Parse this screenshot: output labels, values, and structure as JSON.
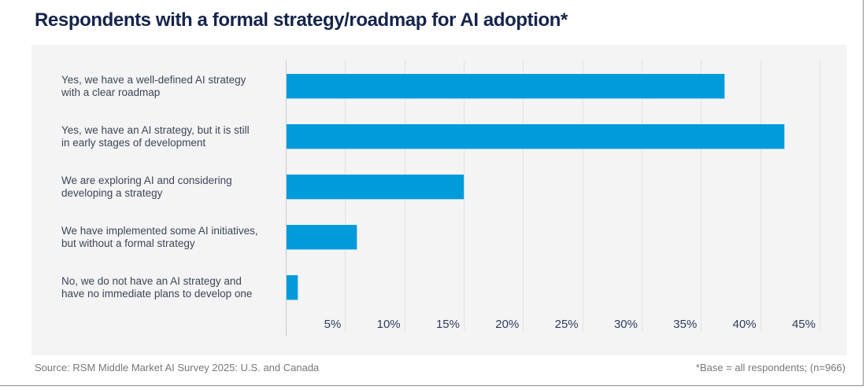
{
  "title": "Respondents with a formal strategy/roadmap for AI adoption*",
  "footer": {
    "source": "Source: RSM Middle Market AI Survey 2025: U.S. and Canada",
    "base_note": "*Base = all respondents; (n=966)"
  },
  "colors": {
    "bar": "#009bdb",
    "bar_edge": "#a8d6ef",
    "panel_bg": "#f4f4f5",
    "gridline": "#e1e2e4",
    "axis": "#c9cacc",
    "title": "#15244b",
    "category_text": "#3d4656",
    "tick_text": "#2d3c5c",
    "footer_text": "#75777a",
    "frame_border": "#8e8e8e"
  },
  "chart_data": {
    "type": "bar",
    "orientation": "horizontal",
    "title": "Respondents with a formal strategy/roadmap for AI adoption*",
    "categories": [
      "Yes, we have a well-defined AI strategy with a clear roadmap",
      "Yes, we have an AI strategy, but it is still in early stages of development",
      "We are exploring AI and considering developing a strategy",
      "We have implemented some AI initiatives, but without a formal strategy",
      "No, we do not have an AI strategy and have no immediate plans to develop one"
    ],
    "category_lines": [
      [
        "Yes, we have a well-defined AI strategy",
        "with a clear roadmap"
      ],
      [
        "Yes, we have an AI strategy, but it is still",
        "in early stages of development"
      ],
      [
        "We are exploring AI and considering",
        "developing a strategy"
      ],
      [
        "We have implemented some AI initiatives,",
        "but without a formal strategy"
      ],
      [
        "No, we do not have an AI strategy and",
        "have no immediate plans to develop one"
      ]
    ],
    "values": [
      37,
      42,
      15,
      6,
      1
    ],
    "value_unit": "%",
    "xlabel": "",
    "ylabel": "",
    "xlim": [
      0,
      45
    ],
    "xticks": [
      5,
      10,
      15,
      20,
      25,
      30,
      35,
      40,
      45
    ],
    "xtick_labels": [
      "5%",
      "10%",
      "15%",
      "20%",
      "25%",
      "30%",
      "35%",
      "40%",
      "45%"
    ],
    "grid": true,
    "legend": false
  }
}
